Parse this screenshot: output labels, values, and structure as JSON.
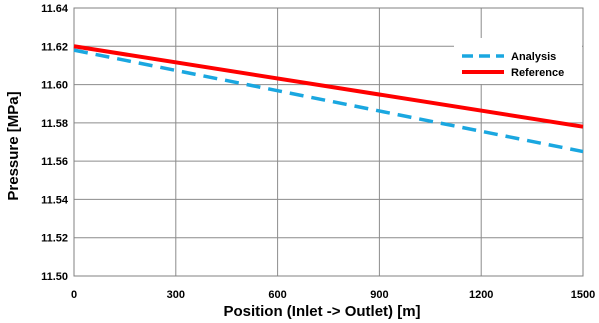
{
  "chart_data": {
    "type": "line",
    "xlabel": "Position (Inlet -> Outlet) [m]",
    "ylabel": "Pressure [MPa]",
    "xlim": [
      0,
      1500
    ],
    "ylim": [
      11.5,
      11.64
    ],
    "x_ticks": [
      "0",
      "300",
      "600",
      "900",
      "1200",
      "1500"
    ],
    "y_ticks": [
      "11.50",
      "11.52",
      "11.54",
      "11.56",
      "11.58",
      "11.60",
      "11.62",
      "11.64"
    ],
    "grid": true,
    "legend_position": "top-right",
    "series": [
      {
        "name": "Analysis",
        "color": "#1aa7e0",
        "dash": true,
        "x": [
          0,
          1500
        ],
        "y": [
          11.618,
          11.565
        ]
      },
      {
        "name": "Reference",
        "color": "#ff0000",
        "dash": false,
        "x": [
          0,
          1500
        ],
        "y": [
          11.62,
          11.578
        ]
      }
    ]
  }
}
